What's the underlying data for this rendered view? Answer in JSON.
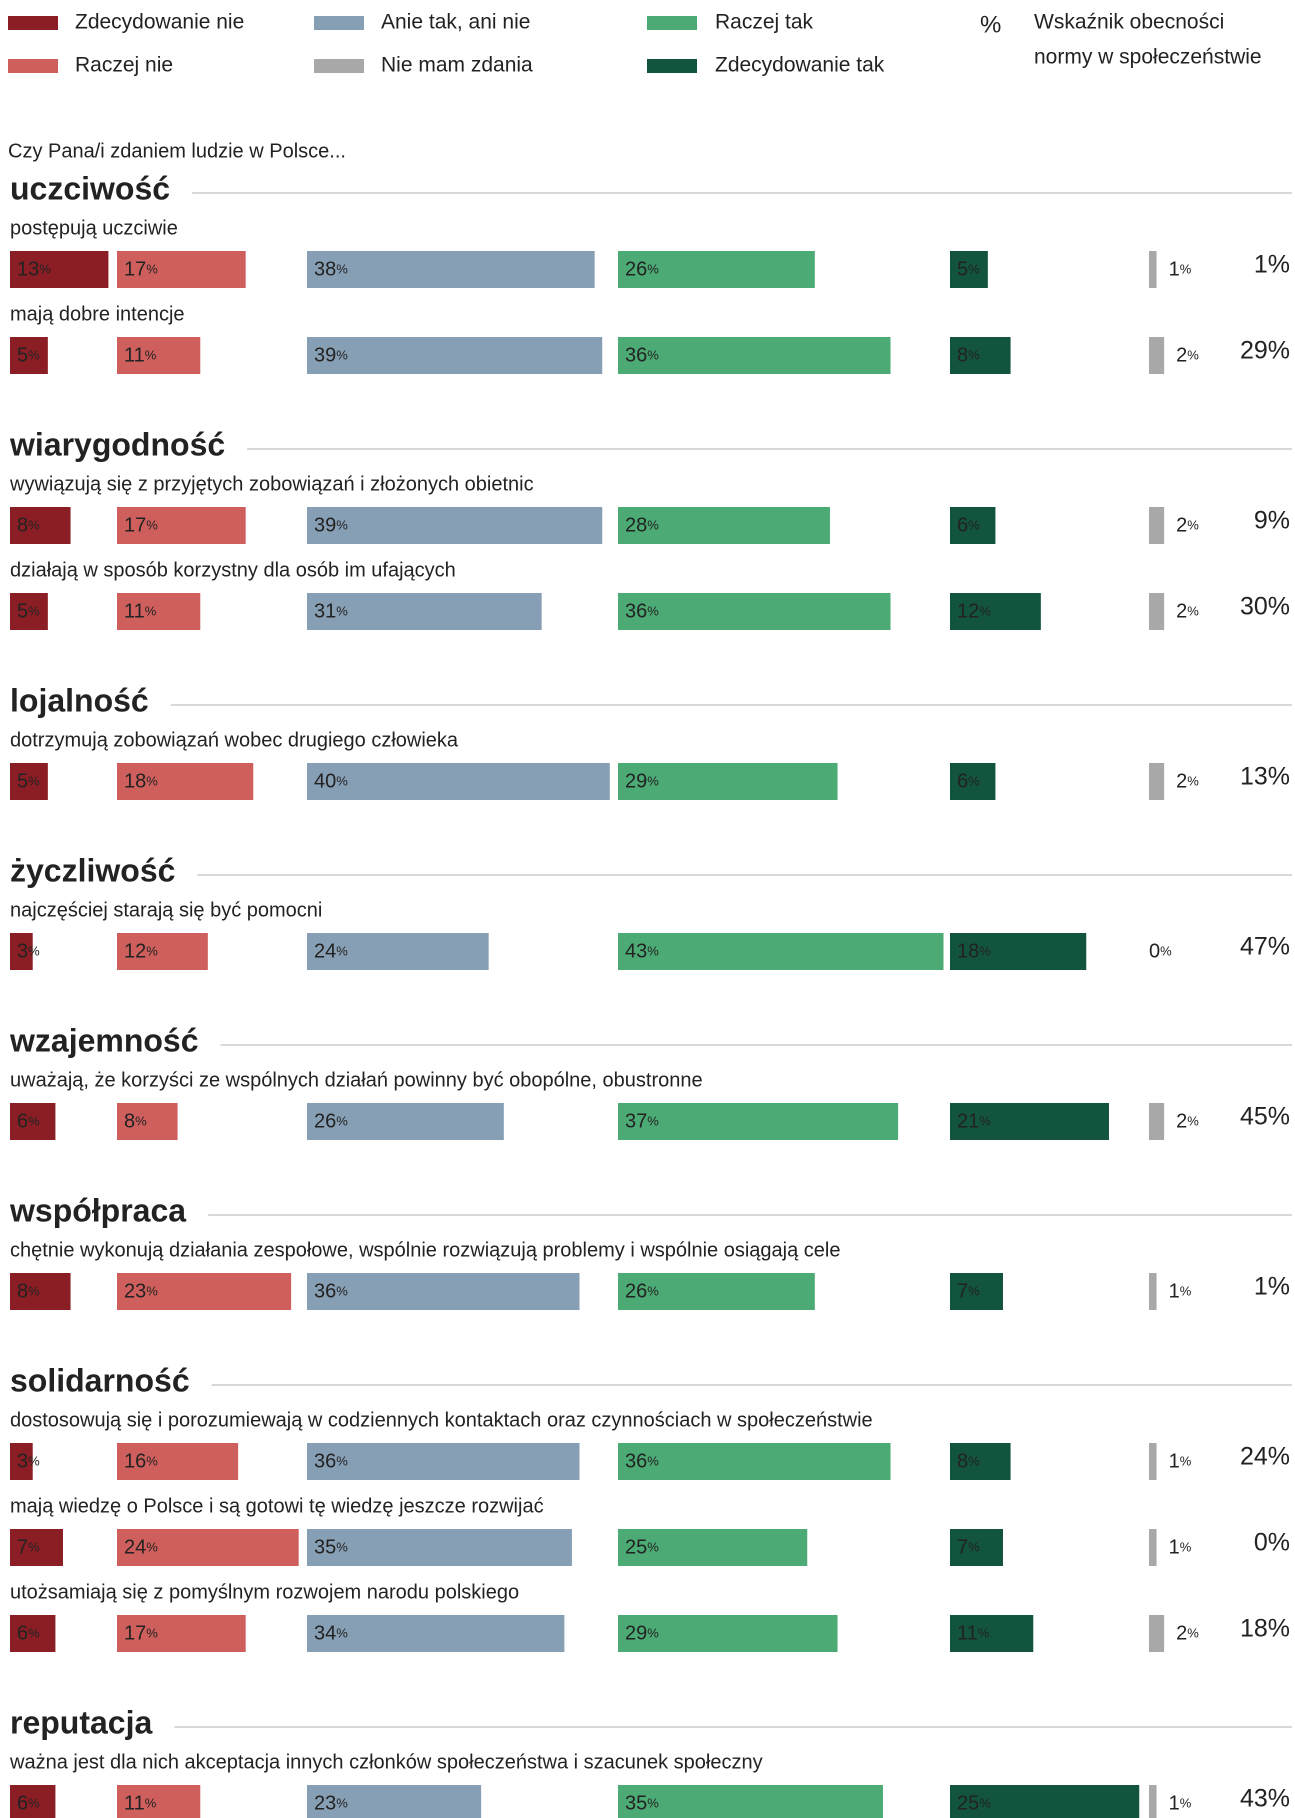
{
  "chart_data": {
    "type": "bar-columns",
    "series": [
      {
        "name": "Zdecydowanie nie",
        "color": "#8b1e24"
      },
      {
        "name": "Raczej nie",
        "color": "#cf5f5c"
      },
      {
        "name": "Anie tak, ani nie",
        "color": "#879fb4"
      },
      {
        "name": "Nie mam zdania",
        "color": "#a8a8a8"
      },
      {
        "name": "Raczej tak",
        "color": "#4cab75"
      },
      {
        "name": "Zdecydowanie tak",
        "color": "#12543d"
      }
    ],
    "index_symbol": "%",
    "index_name": [
      "Wskaźnik obecności",
      "normy w społeczeństwie"
    ],
    "question": "Czy Pana/i zdaniem ludzie w Polsce...",
    "groups": [
      {
        "title": "uczciwość",
        "rows": [
          {
            "label": "postępują uczciwie",
            "values": [
              13,
              17,
              38,
              1,
              26,
              5
            ],
            "value_labels": [
              "13%",
              "17%",
              "38%",
              "1%",
              "26%",
              "5%"
            ],
            "index": 1,
            "index_label": "1%"
          },
          {
            "label": "mają dobre intencje",
            "values": [
              5,
              11,
              39,
              2,
              36,
              8
            ],
            "value_labels": [
              "5%",
              "11%",
              "39%",
              "2%",
              "36%",
              "8%"
            ],
            "index": 29,
            "index_label": "29%"
          }
        ]
      },
      {
        "title": "wiarygodność",
        "rows": [
          {
            "label": "wywiązują się z przyjętych zobowiązań i złożonych obietnic",
            "values": [
              8,
              17,
              39,
              2,
              28,
              6
            ],
            "value_labels": [
              "8%",
              "17%",
              "39%",
              "2%",
              "28%",
              "6%"
            ],
            "index": 9,
            "index_label": "9%"
          },
          {
            "label": "działają w sposób korzystny dla osób im ufających",
            "values": [
              5,
              11,
              31,
              2,
              36,
              12
            ],
            "value_labels": [
              "5%",
              "11%",
              "31%",
              "2%",
              "36%",
              "12%"
            ],
            "index": 30,
            "index_label": "30%"
          }
        ]
      },
      {
        "title": "lojalność",
        "rows": [
          {
            "label": "dotrzymują zobowiązań wobec drugiego człowieka",
            "values": [
              5,
              18,
              40,
              2,
              29,
              6
            ],
            "value_labels": [
              "5%",
              "18%",
              "40%",
              "2%",
              "29%",
              "6%"
            ],
            "index": 13,
            "index_label": "13%"
          }
        ]
      },
      {
        "title": "życzliwość",
        "rows": [
          {
            "label": "najczęściej starają się być pomocni",
            "values": [
              3,
              12,
              24,
              0,
              43,
              18
            ],
            "value_labels": [
              "3%",
              "12%",
              "24%",
              "0%",
              "43%",
              "18%"
            ],
            "index": 47,
            "index_label": "47%"
          }
        ]
      },
      {
        "title": "wzajemność",
        "rows": [
          {
            "label": "uważają, że korzyści ze wspólnych działań powinny być obopólne, obustronne",
            "values": [
              6,
              8,
              26,
              2,
              37,
              21
            ],
            "value_labels": [
              "6%",
              "8%",
              "26%",
              "2%",
              "37%",
              "21%"
            ],
            "index": 45,
            "index_label": "45%"
          }
        ]
      },
      {
        "title": "współpraca",
        "rows": [
          {
            "label": "chętnie wykonują działania zespołowe, wspólnie rozwiązują problemy i wspólnie osiągają cele",
            "values": [
              8,
              23,
              36,
              1,
              26,
              7
            ],
            "value_labels": [
              "8%",
              "23%",
              "36%",
              "1%",
              "26%",
              "7%"
            ],
            "index": 1,
            "index_label": "1%"
          }
        ]
      },
      {
        "title": "solidarność",
        "rows": [
          {
            "label": "dostosowują się i porozumiewają w codziennych kontaktach oraz czynnościach w społeczeństwie",
            "values": [
              3,
              16,
              36,
              1,
              36,
              8
            ],
            "value_labels": [
              "3%",
              "16%",
              "36%",
              "1%",
              "36%",
              "8%"
            ],
            "index": 24,
            "index_label": "24%"
          },
          {
            "label": "mają wiedzę o Polsce i są gotowi tę wiedzę jeszcze rozwijać",
            "values": [
              7,
              24,
              35,
              1,
              25,
              7
            ],
            "value_labels": [
              "7%",
              "24%",
              "35%",
              "1%",
              "25%",
              "7%"
            ],
            "index": 0,
            "index_label": "0%"
          },
          {
            "label": "utożsamiają się z pomyślnym rozwojem narodu polskiego",
            "values": [
              6,
              17,
              34,
              2,
              29,
              11
            ],
            "value_labels": [
              "6%",
              "17%",
              "34%",
              "2%",
              "29%",
              "11%"
            ],
            "index": 18,
            "index_label": "18%"
          }
        ]
      },
      {
        "title": "reputacja",
        "rows": [
          {
            "label": "ważna jest dla nich akceptacja innych członków społeczeństwa i szacunek społeczny",
            "values": [
              6,
              11,
              23,
              1,
              35,
              25
            ],
            "value_labels": [
              "6%",
              "11%",
              "23%",
              "1%",
              "35%",
              "25%"
            ],
            "index": 43,
            "index_label": "43%"
          }
        ]
      }
    ]
  }
}
